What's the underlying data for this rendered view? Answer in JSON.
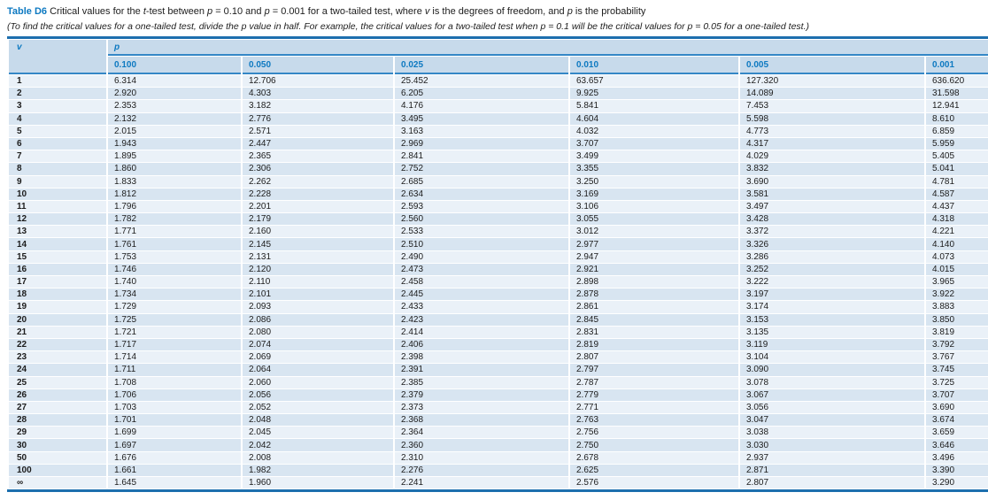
{
  "title": {
    "label": "Table D6",
    "parts": [
      {
        "t": " Critical values for the ",
        "s": ""
      },
      {
        "t": "t",
        "s": "i"
      },
      {
        "t": "-test between ",
        "s": ""
      },
      {
        "t": "p",
        "s": "i"
      },
      {
        "t": " = 0.10 and ",
        "s": ""
      },
      {
        "t": "p",
        "s": "i"
      },
      {
        "t": " = 0.001 for a two-tailed test, where ",
        "s": ""
      },
      {
        "t": "v",
        "s": "i"
      },
      {
        "t": " is the degrees of freedom, and ",
        "s": ""
      },
      {
        "t": "p",
        "s": "i"
      },
      {
        "t": " is the probability",
        "s": ""
      }
    ],
    "note": "(To find the critical values for a one-tailed test, divide the p value in half. For example, the critical values for a two-tailed test when p = 0.1 will be the critical values for p = 0.05 for a one-tailed test.)"
  },
  "table": {
    "v_header": "v",
    "p_header": "p",
    "p_columns": [
      "0.100",
      "0.050",
      "0.025",
      "0.010",
      "0.005",
      "0.001"
    ],
    "rows": [
      {
        "v": "1",
        "values": [
          "6.314",
          "12.706",
          "25.452",
          "63.657",
          "127.320",
          "636.620"
        ]
      },
      {
        "v": "2",
        "values": [
          "2.920",
          "4.303",
          "6.205",
          "9.925",
          "14.089",
          "31.598"
        ]
      },
      {
        "v": "3",
        "values": [
          "2.353",
          "3.182",
          "4.176",
          "5.841",
          "7.453",
          "12.941"
        ]
      },
      {
        "v": "4",
        "values": [
          "2.132",
          "2.776",
          "3.495",
          "4.604",
          "5.598",
          "8.610"
        ]
      },
      {
        "v": "5",
        "values": [
          "2.015",
          "2.571",
          "3.163",
          "4.032",
          "4.773",
          "6.859"
        ]
      },
      {
        "v": "6",
        "values": [
          "1.943",
          "2.447",
          "2.969",
          "3.707",
          "4.317",
          "5.959"
        ]
      },
      {
        "v": "7",
        "values": [
          "1.895",
          "2.365",
          "2.841",
          "3.499",
          "4.029",
          "5.405"
        ]
      },
      {
        "v": "8",
        "values": [
          "1.860",
          "2.306",
          "2.752",
          "3.355",
          "3.832",
          "5.041"
        ]
      },
      {
        "v": "9",
        "values": [
          "1.833",
          "2.262",
          "2.685",
          "3.250",
          "3.690",
          "4.781"
        ]
      },
      {
        "v": "10",
        "values": [
          "1.812",
          "2.228",
          "2.634",
          "3.169",
          "3.581",
          "4.587"
        ]
      },
      {
        "v": "11",
        "values": [
          "1.796",
          "2.201",
          "2.593",
          "3.106",
          "3.497",
          "4.437"
        ]
      },
      {
        "v": "12",
        "values": [
          "1.782",
          "2.179",
          "2.560",
          "3.055",
          "3.428",
          "4.318"
        ]
      },
      {
        "v": "13",
        "values": [
          "1.771",
          "2.160",
          "2.533",
          "3.012",
          "3.372",
          "4.221"
        ]
      },
      {
        "v": "14",
        "values": [
          "1.761",
          "2.145",
          "2.510",
          "2.977",
          "3.326",
          "4.140"
        ]
      },
      {
        "v": "15",
        "values": [
          "1.753",
          "2.131",
          "2.490",
          "2.947",
          "3.286",
          "4.073"
        ]
      },
      {
        "v": "16",
        "values": [
          "1.746",
          "2.120",
          "2.473",
          "2.921",
          "3.252",
          "4.015"
        ]
      },
      {
        "v": "17",
        "values": [
          "1.740",
          "2.110",
          "2.458",
          "2.898",
          "3.222",
          "3.965"
        ]
      },
      {
        "v": "18",
        "values": [
          "1.734",
          "2.101",
          "2.445",
          "2.878",
          "3.197",
          "3.922"
        ]
      },
      {
        "v": "19",
        "values": [
          "1.729",
          "2.093",
          "2.433",
          "2.861",
          "3.174",
          "3.883"
        ]
      },
      {
        "v": "20",
        "values": [
          "1.725",
          "2.086",
          "2.423",
          "2.845",
          "3.153",
          "3.850"
        ]
      },
      {
        "v": "21",
        "values": [
          "1.721",
          "2.080",
          "2.414",
          "2.831",
          "3.135",
          "3.819"
        ]
      },
      {
        "v": "22",
        "values": [
          "1.717",
          "2.074",
          "2.406",
          "2.819",
          "3.119",
          "3.792"
        ]
      },
      {
        "v": "23",
        "values": [
          "1.714",
          "2.069",
          "2.398",
          "2.807",
          "3.104",
          "3.767"
        ]
      },
      {
        "v": "24",
        "values": [
          "1.711",
          "2.064",
          "2.391",
          "2.797",
          "3.090",
          "3.745"
        ]
      },
      {
        "v": "25",
        "values": [
          "1.708",
          "2.060",
          "2.385",
          "2.787",
          "3.078",
          "3.725"
        ]
      },
      {
        "v": "26",
        "values": [
          "1.706",
          "2.056",
          "2.379",
          "2.779",
          "3.067",
          "3.707"
        ]
      },
      {
        "v": "27",
        "values": [
          "1.703",
          "2.052",
          "2.373",
          "2.771",
          "3.056",
          "3.690"
        ]
      },
      {
        "v": "28",
        "values": [
          "1.701",
          "2.048",
          "2.368",
          "2.763",
          "3.047",
          "3.674"
        ]
      },
      {
        "v": "29",
        "values": [
          "1.699",
          "2.045",
          "2.364",
          "2.756",
          "3.038",
          "3.659"
        ]
      },
      {
        "v": "30",
        "values": [
          "1.697",
          "2.042",
          "2.360",
          "2.750",
          "3.030",
          "3.646"
        ]
      },
      {
        "v": "50",
        "values": [
          "1.676",
          "2.008",
          "2.310",
          "2.678",
          "2.937",
          "3.496"
        ]
      },
      {
        "v": "100",
        "values": [
          "1.661",
          "1.982",
          "2.276",
          "2.625",
          "2.871",
          "3.390"
        ]
      },
      {
        "v": "∞",
        "values": [
          "1.645",
          "1.960",
          "2.241",
          "2.576",
          "2.807",
          "3.290"
        ]
      }
    ]
  },
  "colors": {
    "accent": "#0d79c1",
    "border_strong": "#1d6fae",
    "border_mid": "#3487c6",
    "header_bg": "#c7daeb",
    "row_odd": "#eaf1f8",
    "row_even": "#d8e5f1",
    "text": "#1c1c1c"
  }
}
